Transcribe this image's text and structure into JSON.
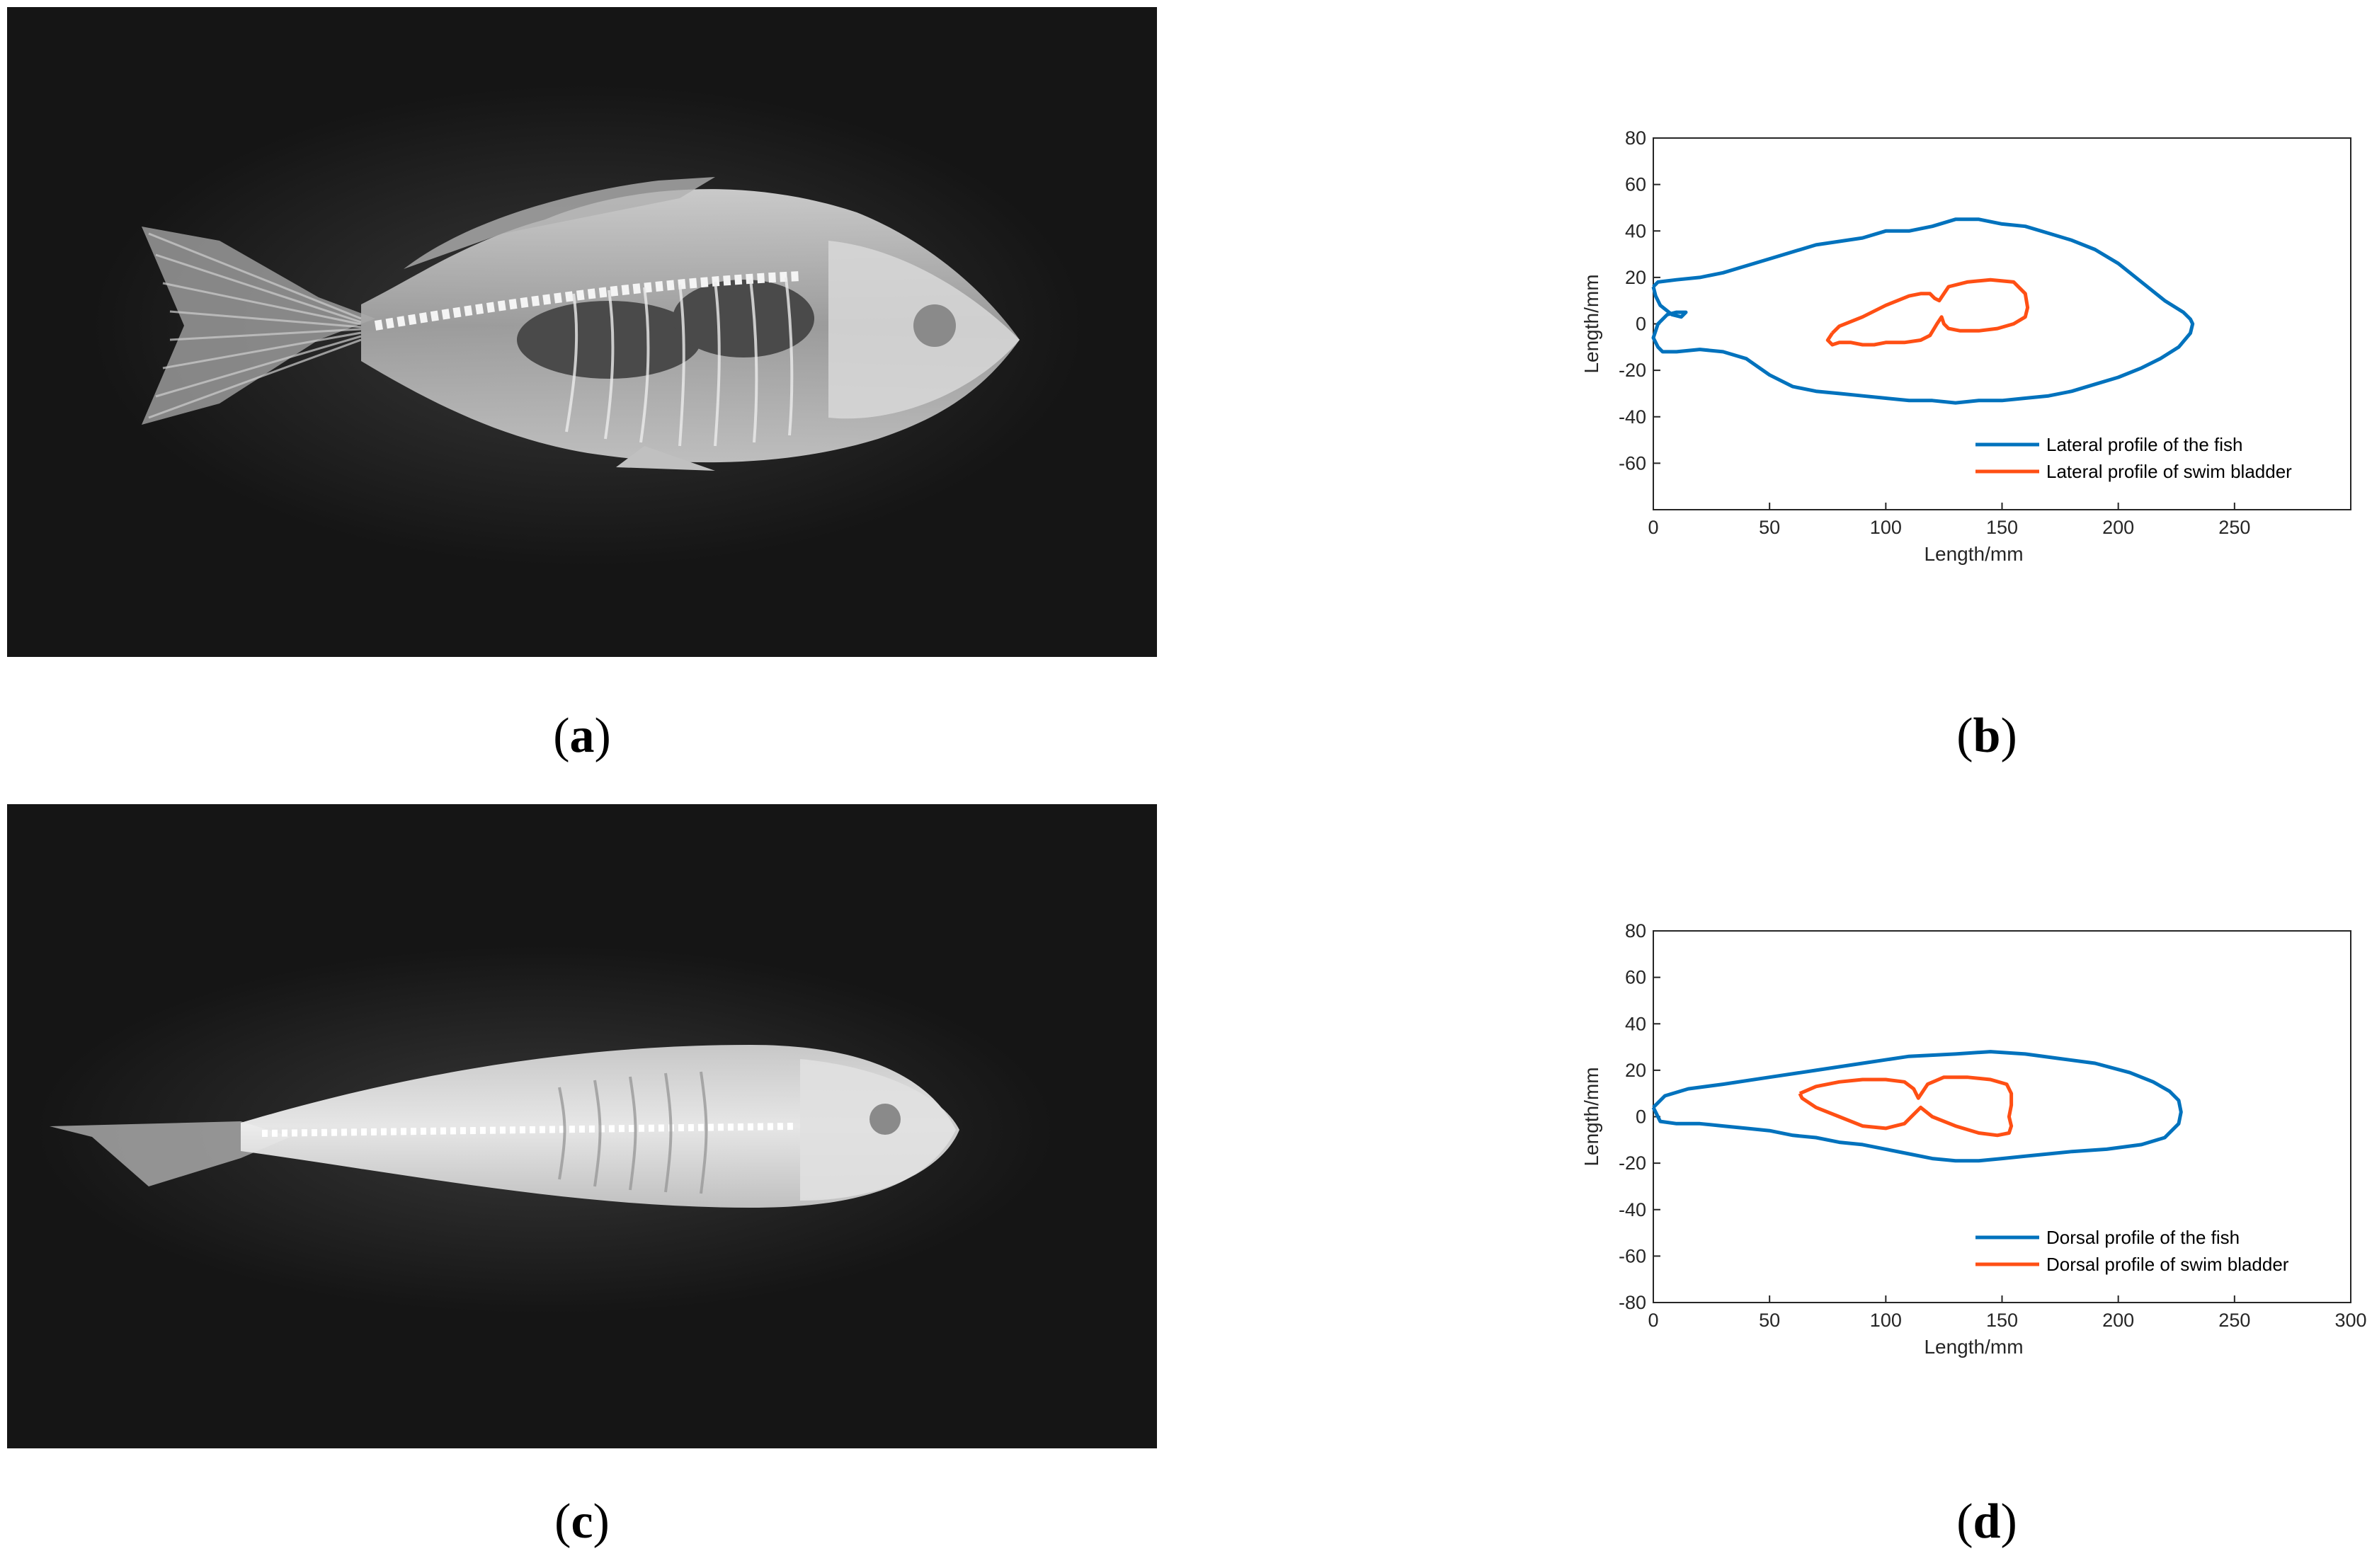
{
  "panels": {
    "a": {
      "label": "a",
      "description_icon": "xray-lateral-fish"
    },
    "b": {
      "label": "b"
    },
    "c": {
      "label": "c",
      "description_icon": "xray-dorsal-fish"
    },
    "d": {
      "label": "d"
    }
  },
  "colors": {
    "fish": "#0072BD",
    "bladder": "#FF4F14",
    "xray_bg": "#151515"
  },
  "chart_data": [
    {
      "id": "b",
      "type": "line",
      "xlabel": "Length/mm",
      "ylabel": "Length/mm",
      "xlim": [
        0,
        300
      ],
      "ylim": [
        -80,
        80
      ],
      "xticks": [
        0,
        50,
        100,
        150,
        200,
        250
      ],
      "yticks": [
        -60,
        -40,
        -20,
        0,
        20,
        40,
        60,
        80
      ],
      "legend_position": "bottom-right",
      "series": [
        {
          "name": "Lateral profile of the fish",
          "color": "#0072BD",
          "x": [
            0,
            2,
            10,
            20,
            30,
            50,
            70,
            90,
            100,
            110,
            120,
            130,
            140,
            150,
            160,
            170,
            180,
            190,
            200,
            210,
            220,
            228,
            231,
            232,
            231,
            226,
            218,
            210,
            200,
            190,
            180,
            170,
            160,
            150,
            140,
            130,
            120,
            110,
            100,
            90,
            80,
            70,
            60,
            50,
            40,
            30,
            20,
            10,
            4,
            2,
            0,
            2,
            6,
            10,
            14,
            12,
            8,
            3,
            1,
            0
          ],
          "y": [
            16,
            18,
            19,
            20,
            22,
            28,
            34,
            37,
            40,
            40,
            42,
            45,
            45,
            43,
            42,
            39,
            36,
            32,
            26,
            18,
            10,
            5,
            2,
            0,
            -4,
            -10,
            -15,
            -19,
            -23,
            -26,
            -29,
            -31,
            -32,
            -33,
            -33,
            -34,
            -33,
            -33,
            -32,
            -31,
            -30,
            -29,
            -27,
            -22,
            -15,
            -12,
            -11,
            -12,
            -12,
            -10,
            -6,
            0,
            4,
            5,
            5,
            3,
            4,
            8,
            12,
            16
          ]
        },
        {
          "name": "Lateral profile of swim bladder",
          "color": "#FF4F14",
          "x": [
            77,
            80,
            90,
            100,
            105,
            110,
            115,
            119,
            121,
            123,
            127,
            135,
            145,
            155,
            160,
            161,
            160,
            155,
            148,
            140,
            132,
            127,
            125,
            124,
            122,
            119,
            115,
            108,
            100,
            95,
            90,
            85,
            80,
            77,
            75,
            77
          ],
          "y": [
            -4,
            -1,
            3,
            8,
            10,
            12,
            13,
            13,
            11,
            10,
            16,
            18,
            19,
            18,
            13,
            7,
            3,
            0,
            -2,
            -3,
            -3,
            -2,
            0,
            3,
            0,
            -5,
            -7,
            -8,
            -8,
            -9,
            -9,
            -8,
            -8,
            -9,
            -7,
            -4
          ]
        }
      ]
    },
    {
      "id": "d",
      "type": "line",
      "xlabel": "Length/mm",
      "ylabel": "Length/mm",
      "xlim": [
        0,
        300
      ],
      "ylim": [
        -80,
        80
      ],
      "xticks": [
        0,
        50,
        100,
        150,
        200,
        250,
        300
      ],
      "yticks": [
        -80,
        -60,
        -40,
        -20,
        0,
        20,
        40,
        60,
        80
      ],
      "legend_position": "bottom-right",
      "series": [
        {
          "name": "Dorsal profile of the fish",
          "color": "#0072BD",
          "x": [
            0,
            5,
            15,
            30,
            50,
            70,
            90,
            110,
            130,
            145,
            160,
            175,
            190,
            205,
            215,
            222,
            226,
            227,
            226,
            220,
            210,
            195,
            180,
            170,
            160,
            150,
            140,
            130,
            120,
            110,
            100,
            90,
            80,
            70,
            60,
            50,
            40,
            30,
            20,
            10,
            3,
            0
          ],
          "y": [
            4,
            9,
            12,
            14,
            17,
            20,
            23,
            26,
            27,
            28,
            27,
            25,
            23,
            19,
            15,
            11,
            7,
            2,
            -3,
            -9,
            -12,
            -14,
            -15,
            -16,
            -17,
            -18,
            -19,
            -19,
            -18,
            -16,
            -14,
            -12,
            -11,
            -9,
            -8,
            -6,
            -5,
            -4,
            -3,
            -3,
            -2,
            4
          ]
        },
        {
          "name": "Dorsal profile of swim bladder",
          "color": "#FF4F14",
          "x": [
            63,
            70,
            80,
            90,
            100,
            108,
            112,
            114,
            118,
            125,
            135,
            145,
            152,
            154,
            154,
            153,
            154,
            153,
            148,
            140,
            130,
            120,
            115,
            112,
            108,
            100,
            90,
            80,
            70,
            64,
            63
          ],
          "y": [
            10,
            13,
            15,
            16,
            16,
            15,
            12,
            8,
            14,
            17,
            17,
            16,
            14,
            10,
            5,
            0,
            -4,
            -7,
            -8,
            -7,
            -4,
            0,
            4,
            1,
            -3,
            -5,
            -4,
            0,
            4,
            8,
            10
          ]
        }
      ]
    }
  ]
}
